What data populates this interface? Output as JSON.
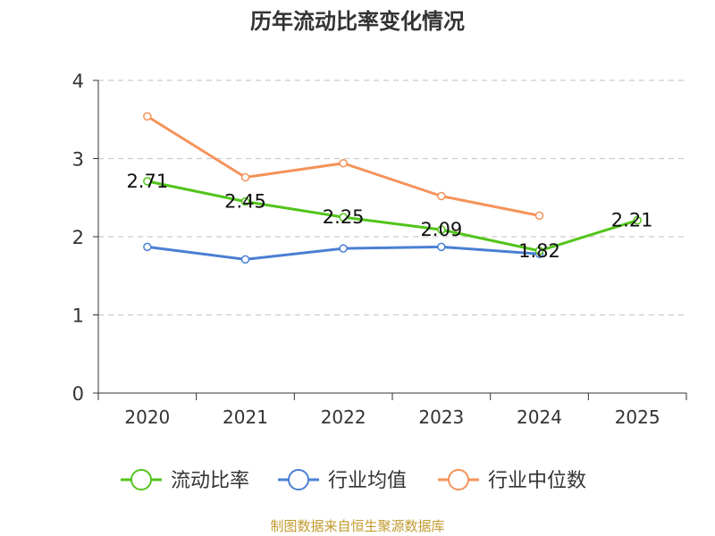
{
  "chart_data": {
    "type": "line",
    "title": "历年流动比率变化情况",
    "categories": [
      "2020",
      "2021",
      "2022",
      "2023",
      "2024",
      "2025"
    ],
    "ylim": [
      0,
      4
    ],
    "yticks": [
      0,
      1,
      2,
      3,
      4
    ],
    "grid": true,
    "legend_position": "bottom",
    "series": [
      {
        "name": "流动比率",
        "color": "#52c41a",
        "values": [
          2.71,
          2.45,
          2.25,
          2.09,
          1.82,
          2.21
        ],
        "labels": [
          "2.71",
          "2.45",
          "2.25",
          "2.09",
          "1.82",
          "2.21"
        ]
      },
      {
        "name": "行业均值",
        "color": "#4a7fd4",
        "values": [
          1.87,
          1.71,
          1.85,
          1.87,
          1.78,
          null
        ]
      },
      {
        "name": "行业中位数",
        "color": "#f5935a",
        "values": [
          3.54,
          2.76,
          2.94,
          2.52,
          2.27,
          null
        ]
      }
    ]
  },
  "footer": {
    "source": "制图数据来自恒生聚源数据库"
  }
}
